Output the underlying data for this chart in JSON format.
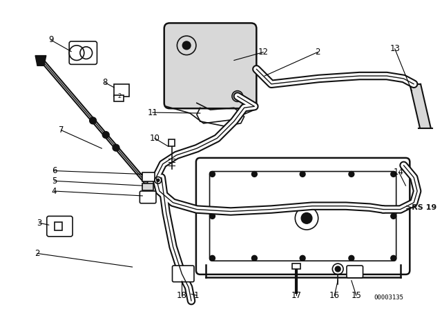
{
  "bg_color": "#ffffff",
  "diagram_id": "00003135",
  "rs_label": "RS 19",
  "line_color": "#111111",
  "gray_fill": "#d8d8d8",
  "white_fill": "#ffffff"
}
